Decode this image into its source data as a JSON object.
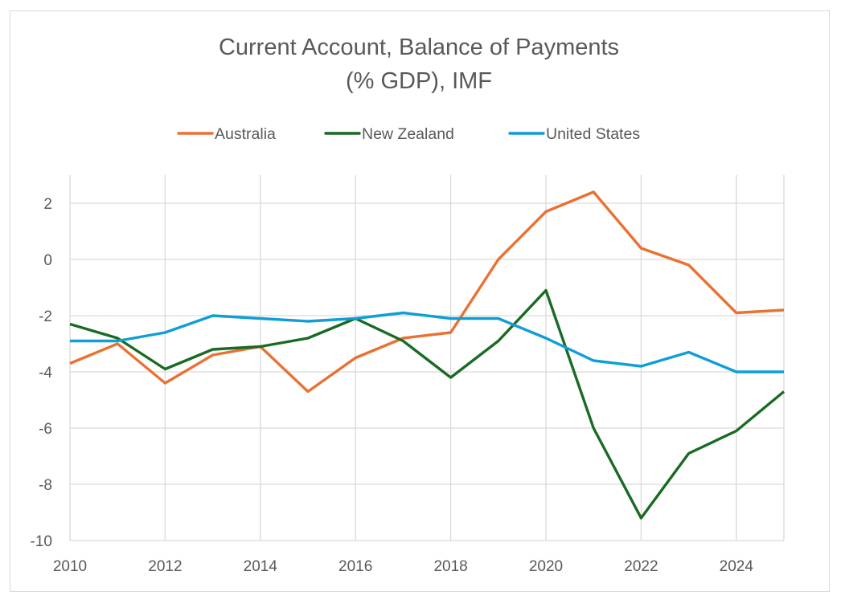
{
  "chart_data": {
    "type": "line",
    "title": "Current Account, Balance of Payments (% GDP), IMF",
    "title_lines": [
      "Current Account, Balance of Payments",
      "(% GDP), IMF"
    ],
    "xlabel": "",
    "ylabel": "",
    "x": [
      2010,
      2011,
      2012,
      2013,
      2014,
      2015,
      2016,
      2017,
      2018,
      2019,
      2020,
      2021,
      2022,
      2023,
      2024,
      2025
    ],
    "xlim": [
      2010,
      2025
    ],
    "ylim": [
      -10,
      3
    ],
    "x_ticks": [
      "2010",
      "2012",
      "2014",
      "2016",
      "2018",
      "2020",
      "2022",
      "2024"
    ],
    "y_ticks": [
      "2",
      "0",
      "-2",
      "-4",
      "-6",
      "-8",
      "-10"
    ],
    "grid": true,
    "legend_position": "top",
    "series": [
      {
        "name": "Australia",
        "color": "#E97132",
        "values": [
          -3.7,
          -3.0,
          -4.4,
          -3.4,
          -3.1,
          -4.7,
          -3.5,
          -2.8,
          -2.6,
          0.0,
          1.7,
          2.4,
          0.4,
          -0.2,
          -1.9,
          -1.8
        ]
      },
      {
        "name": "New Zealand",
        "color": "#196B24",
        "values": [
          -2.3,
          -2.8,
          -3.9,
          -3.2,
          -3.1,
          -2.8,
          -2.1,
          -2.9,
          -4.2,
          -2.9,
          -1.1,
          -6.0,
          -9.2,
          -6.9,
          -6.1,
          -4.7
        ]
      },
      {
        "name": "United States",
        "color": "#0F9ED5",
        "values": [
          -2.9,
          -2.9,
          -2.6,
          -2.0,
          -2.1,
          -2.2,
          -2.1,
          -1.9,
          -2.1,
          -2.1,
          -2.8,
          -3.6,
          -3.8,
          -3.3,
          -4.0,
          -4.0
        ]
      }
    ]
  }
}
